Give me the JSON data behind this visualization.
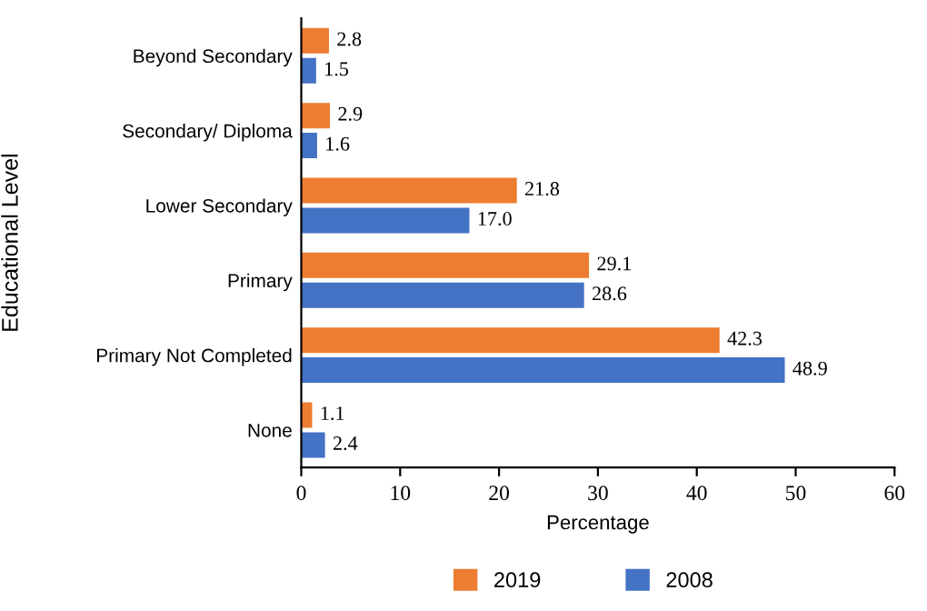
{
  "chart_data": {
    "type": "bar",
    "orientation": "horizontal",
    "xlabel": "Percentage",
    "ylabel": "Educational Level",
    "categories": [
      "Beyond Secondary",
      "Secondary/ Diploma",
      "Lower Secondary",
      "Primary",
      "Primary Not Completed",
      "None"
    ],
    "series": [
      {
        "name": "2019",
        "color": "#ed7d31",
        "values": [
          2.8,
          2.9,
          21.8,
          29.1,
          42.3,
          1.1
        ],
        "value_labels": [
          "2.8",
          "2.9",
          "21.8",
          "29.1",
          "42.3",
          "1.1"
        ]
      },
      {
        "name": "2008",
        "color": "#4472c4",
        "values": [
          1.5,
          1.6,
          17.0,
          28.6,
          48.9,
          2.4
        ],
        "value_labels": [
          "1.5",
          "1.6",
          "17.0",
          "28.6",
          "48.9",
          "2.4"
        ]
      }
    ],
    "xlim": [
      0,
      60
    ],
    "xticks": [
      0,
      10,
      20,
      30,
      40,
      50,
      60
    ],
    "grid": false,
    "legend": "bottom"
  }
}
